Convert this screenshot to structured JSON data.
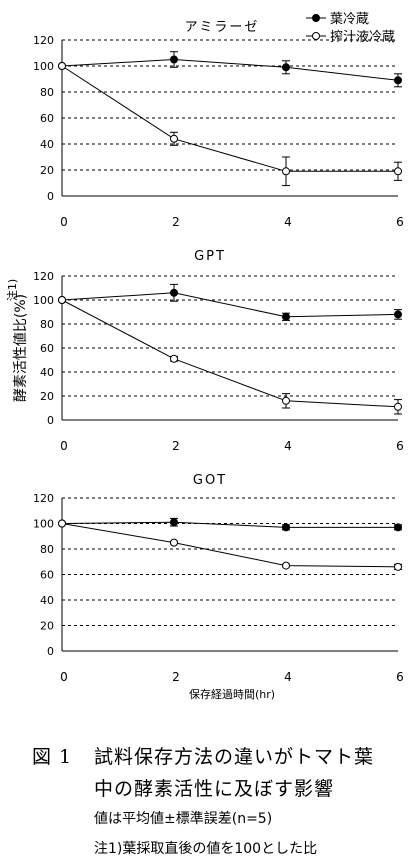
{
  "chart_data": [
    {
      "type": "line",
      "title": "アミラーゼ",
      "x": [
        0,
        2,
        4,
        6
      ],
      "xticks": [
        "0",
        "2",
        "4",
        "6"
      ],
      "ylim": [
        0,
        120
      ],
      "yticks": [
        "0",
        "20",
        "40",
        "60",
        "80",
        "100",
        "120"
      ],
      "grid": "horizontal-dashed",
      "legend_position": "top-right",
      "series": [
        {
          "name": "葉冷蔵",
          "marker": "filled-circle",
          "values": [
            100,
            105,
            99,
            89
          ],
          "errors": [
            0,
            6,
            5,
            5
          ]
        },
        {
          "name": "搾汁液冷蔵",
          "marker": "open-circle",
          "values": [
            100,
            44,
            19,
            19
          ],
          "errors": [
            0,
            5,
            11,
            7
          ]
        }
      ]
    },
    {
      "type": "line",
      "title": "GPT",
      "x": [
        0,
        2,
        4,
        6
      ],
      "xticks": [
        "0",
        "2",
        "4",
        "6"
      ],
      "ylim": [
        0,
        120
      ],
      "yticks": [
        "0",
        "20",
        "40",
        "60",
        "80",
        "100",
        "120"
      ],
      "grid": "horizontal-dashed",
      "series": [
        {
          "marker": "filled-circle",
          "values": [
            100,
            106,
            86,
            88
          ],
          "errors": [
            0,
            7,
            3,
            4
          ]
        },
        {
          "marker": "open-circle",
          "values": [
            100,
            51,
            16,
            11
          ],
          "errors": [
            0,
            2,
            6,
            6
          ]
        }
      ]
    },
    {
      "type": "line",
      "title": "GOT",
      "x": [
        0,
        2,
        4,
        6
      ],
      "xticks": [
        "0",
        "2",
        "4",
        "6"
      ],
      "ylim": [
        0,
        120
      ],
      "yticks": [
        "0",
        "20",
        "40",
        "60",
        "80",
        "100",
        "120"
      ],
      "grid": "horizontal-dashed",
      "xlabel": "保存経過時間(hr)",
      "series": [
        {
          "marker": "filled-circle",
          "values": [
            100,
            101,
            97,
            97
          ],
          "errors": [
            0,
            3,
            2,
            2
          ]
        },
        {
          "marker": "open-circle",
          "values": [
            100,
            85,
            67,
            66
          ],
          "errors": [
            0,
            1,
            1,
            2
          ]
        }
      ]
    }
  ],
  "ylabel": "酵素活性値比(%)",
  "ylabel_note": "注1)",
  "caption": {
    "figure_label": "図 1",
    "line1": "試料保存方法の違いがトマト葉",
    "line2": "中の酵素活性に及ぼす影響",
    "line3": "値は平均値±標準誤差(n=5)",
    "line4": "注1)葉採取直後の値を100とした比"
  }
}
